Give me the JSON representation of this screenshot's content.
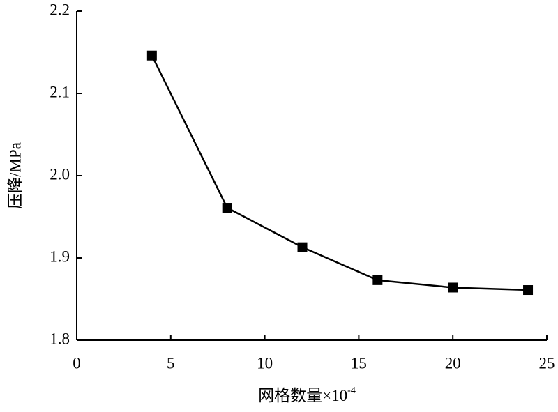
{
  "chart_data": {
    "type": "line",
    "x_label": "网格数量×10",
    "x_label_superscript": "-4",
    "y_label": "压降/MPa",
    "x": [
      4,
      8,
      12,
      16,
      20,
      24
    ],
    "series": [
      {
        "color": "#000000",
        "values": [
          2.146,
          1.961,
          1.913,
          1.873,
          1.864,
          1.861
        ]
      }
    ],
    "xlim": [
      0,
      25
    ],
    "xticks": [
      0,
      5,
      10,
      15,
      20,
      25
    ],
    "ylim": [
      1.8,
      2.2
    ],
    "yticks": [
      1.8,
      1.9,
      {
        "value": 2,
        "label": "2.0"
      },
      2.1,
      2.2
    ],
    "grid": false,
    "marker": "square"
  }
}
